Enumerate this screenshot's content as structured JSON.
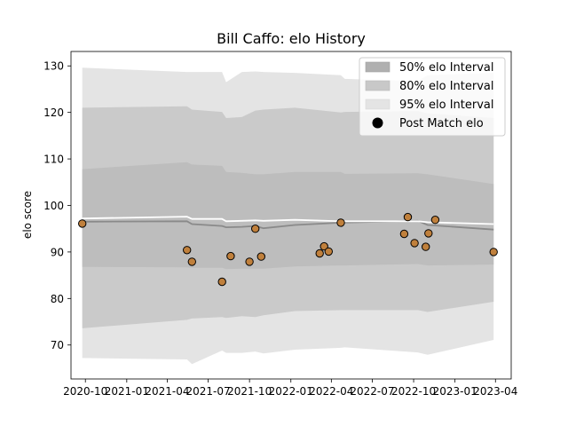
{
  "chart_data": {
    "type": "scatter",
    "title": "Bill Caffo: elo History",
    "xlabel": "",
    "ylabel": "elo score",
    "ylim": [
      62.7,
      133.1
    ],
    "xlim": [
      "2020-08-30",
      "2023-05-06"
    ],
    "x_ticks": [
      "2020-10",
      "2021-01",
      "2021-04",
      "2021-07",
      "2021-10",
      "2022-01",
      "2022-04",
      "2022-07",
      "2022-10",
      "2023-01",
      "2023-04"
    ],
    "y_ticks": [
      70,
      80,
      90,
      100,
      110,
      120,
      130
    ],
    "grid": false,
    "legend_position": "top-right",
    "legend": [
      {
        "label": "50% elo Interval",
        "color": "#b0b0b0"
      },
      {
        "label": "80% elo Interval",
        "color": "#c8c8c8"
      },
      {
        "label": "95% elo Interval",
        "color": "#e4e4e4"
      },
      {
        "label": "Post Match elo",
        "color": "#000000"
      }
    ],
    "band_x": [
      "2020-09-24",
      "2021-05-15",
      "2021-05-26",
      "2021-08-01",
      "2021-08-10",
      "2021-09-14",
      "2021-10-14",
      "2021-11-01",
      "2022-01-10",
      "2022-04-22",
      "2022-05-01",
      "2022-10-10",
      "2022-11-01",
      "2023-03-28"
    ],
    "band_95_upper": [
      129.6,
      128.7,
      128.7,
      128.7,
      126.5,
      128.7,
      128.8,
      128.7,
      128.5,
      128.0,
      127.2,
      126.7,
      128.0,
      128.5
    ],
    "band_95_lower": [
      67.2,
      66.9,
      65.9,
      68.8,
      68.3,
      68.3,
      68.6,
      68.2,
      69.0,
      69.4,
      69.5,
      68.4,
      67.9,
      71.1
    ],
    "band_80_upper": [
      121.0,
      121.3,
      120.6,
      120.1,
      118.8,
      119.0,
      120.4,
      120.6,
      121.0,
      120.0,
      120.1,
      120.3,
      119.8,
      118.8
    ],
    "band_80_lower": [
      73.6,
      75.4,
      75.7,
      76.0,
      75.8,
      76.2,
      76.0,
      76.4,
      77.3,
      77.5,
      77.5,
      77.5,
      77.1,
      79.3
    ],
    "band_50_upper": [
      107.8,
      109.3,
      108.8,
      108.5,
      107.2,
      107.0,
      106.7,
      106.7,
      107.2,
      107.2,
      106.8,
      106.9,
      106.7,
      104.6
    ],
    "band_50_lower": [
      86.8,
      86.7,
      86.6,
      86.6,
      86.3,
      86.4,
      86.4,
      86.4,
      86.9,
      87.1,
      87.1,
      87.4,
      87.1,
      87.3
    ],
    "mean_line": {
      "x": [
        "2020-09-24",
        "2021-05-15",
        "2021-05-26",
        "2021-08-01",
        "2021-08-10",
        "2021-09-14",
        "2021-10-14",
        "2021-11-01",
        "2022-01-10",
        "2022-04-22",
        "2022-10-10",
        "2022-11-01",
        "2023-03-28"
      ],
      "values": [
        96.5,
        96.6,
        96.0,
        95.6,
        95.3,
        95.4,
        95.6,
        95.1,
        95.8,
        96.3,
        96.7,
        95.8,
        94.8
      ]
    },
    "median_line": {
      "x": [
        "2020-09-24",
        "2021-05-15",
        "2021-05-26",
        "2021-08-01",
        "2021-08-10",
        "2021-09-14",
        "2021-10-14",
        "2021-11-01",
        "2022-01-10",
        "2022-04-22",
        "2022-10-10",
        "2022-11-01",
        "2023-03-28"
      ],
      "values": [
        97.2,
        97.6,
        97.1,
        97.1,
        96.6,
        96.7,
        96.8,
        96.7,
        96.9,
        96.6,
        96.6,
        96.4,
        96.0
      ]
    },
    "series": [
      {
        "name": "Post Match elo",
        "x": [
          "2020-09-24",
          "2021-05-15",
          "2021-05-26",
          "2021-08-01",
          "2021-08-20",
          "2021-10-01",
          "2021-10-14",
          "2021-10-27",
          "2022-03-06",
          "2022-03-16",
          "2022-03-26",
          "2022-04-22",
          "2022-09-10",
          "2022-09-18",
          "2022-10-03",
          "2022-10-28",
          "2022-11-03",
          "2022-11-18",
          "2023-03-28"
        ],
        "values": [
          96.1,
          90.4,
          87.9,
          83.6,
          89.1,
          87.9,
          95.0,
          89.0,
          89.7,
          91.2,
          90.1,
          96.3,
          93.9,
          97.5,
          91.9,
          91.1,
          94.0,
          96.9,
          90.0
        ],
        "fill": "#c0803c",
        "stroke": "#000000"
      }
    ]
  }
}
